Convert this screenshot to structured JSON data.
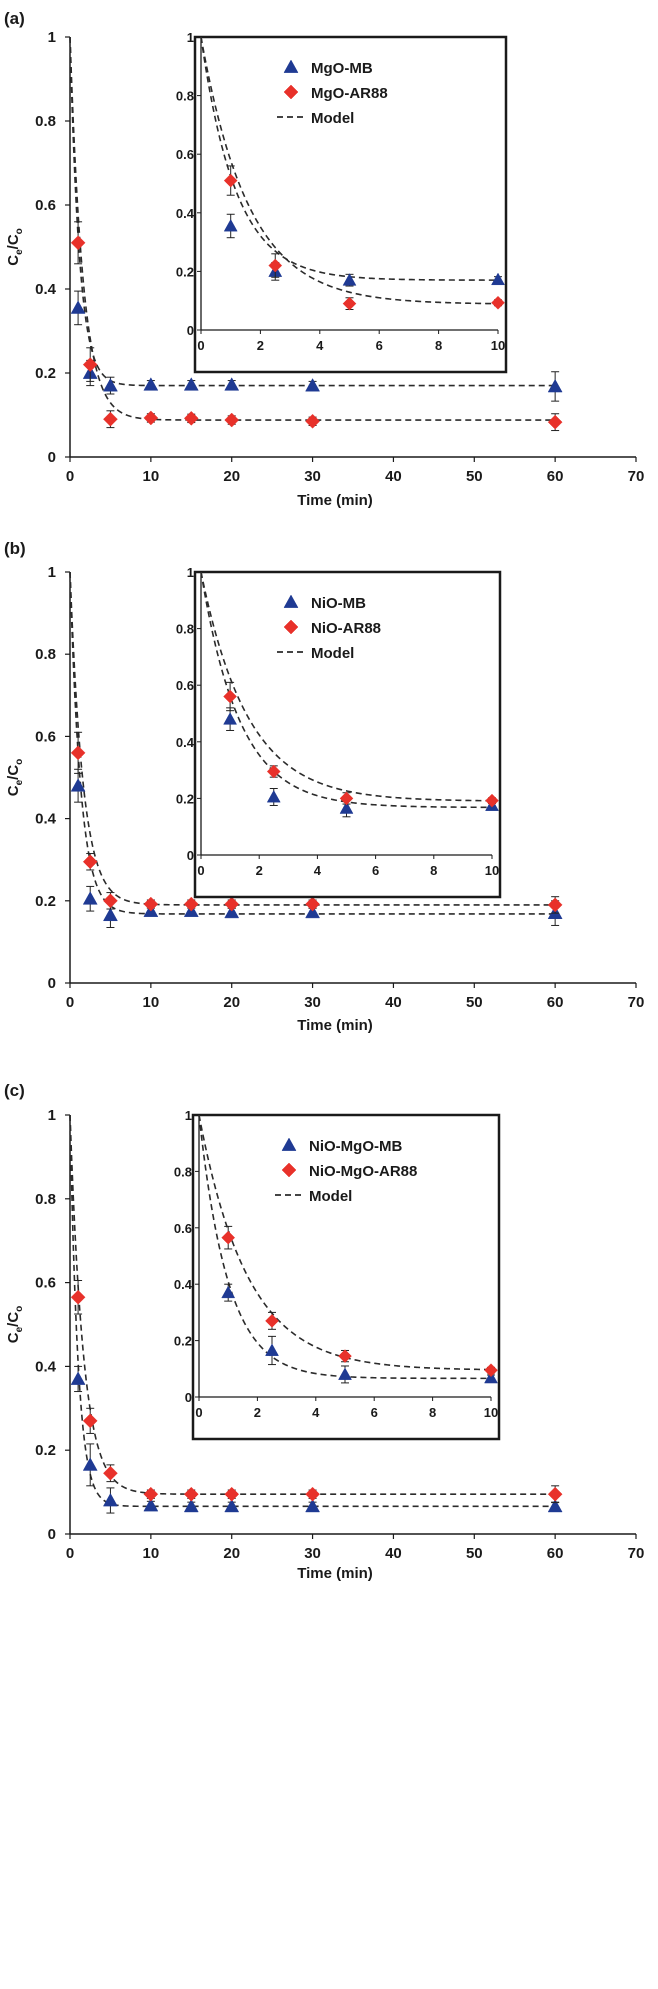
{
  "colors": {
    "mb": "#1f3a93",
    "ar": "#e8312a",
    "model": "#2b2b2b",
    "axis": "#1a1a1a"
  },
  "chart_data": [
    {
      "type": "scatter",
      "panel_label": "(a)",
      "xlabel": "Time (min)",
      "ylabel_main": "C",
      "ylabel_sub1": "e",
      "ylabel_slash": "/C",
      "ylabel_sub2": "o",
      "xlim": [
        0,
        70
      ],
      "ylim": [
        0,
        1
      ],
      "xticks": [
        "0",
        "10",
        "20",
        "30",
        "40",
        "50",
        "60",
        "70"
      ],
      "yticks": [
        "0",
        "0.2",
        "0.4",
        "0.6",
        "0.8",
        "1"
      ],
      "inset": {
        "xlim": [
          0,
          10
        ],
        "ylim": [
          0,
          1
        ],
        "xticks": [
          "0",
          "2",
          "4",
          "6",
          "8",
          "10"
        ],
        "yticks": [
          "0",
          "0.2",
          "0.4",
          "0.6",
          "0.8",
          "1"
        ]
      },
      "legend": {
        "mb": "MgO-MB",
        "ar": "MgO-AR88",
        "model": "Model"
      },
      "series": [
        {
          "key": "mb",
          "name": "MgO-MB",
          "marker": "triangle",
          "x": [
            1,
            2.5,
            5,
            10,
            15,
            20,
            30,
            60
          ],
          "y": [
            0.355,
            0.2,
            0.17,
            0.172,
            0.172,
            0.172,
            0.17,
            0.168
          ],
          "err": [
            0.04,
            0.03,
            0.02,
            0.01,
            0.01,
            0.01,
            0.01,
            0.035
          ],
          "model": {
            "plateau": 0.17,
            "rate": 0.85
          }
        },
        {
          "key": "ar",
          "name": "MgO-AR88",
          "marker": "diamond",
          "x": [
            1,
            2.5,
            5,
            10,
            15,
            20,
            30,
            60
          ],
          "y": [
            0.51,
            0.22,
            0.09,
            0.093,
            0.092,
            0.088,
            0.085,
            0.083
          ],
          "err": [
            0.05,
            0.04,
            0.02,
            0.01,
            0.01,
            0.01,
            0.01,
            0.02
          ],
          "model": {
            "plateau": 0.088,
            "rate": 0.62
          }
        }
      ]
    },
    {
      "type": "scatter",
      "panel_label": "(b)",
      "xlabel": "Time (min)",
      "ylabel_main": "C",
      "ylabel_sub1": "e",
      "ylabel_slash": "/C",
      "ylabel_sub2": "o",
      "xlim": [
        0,
        70
      ],
      "ylim": [
        0,
        1
      ],
      "xticks": [
        "0",
        "10",
        "20",
        "30",
        "40",
        "50",
        "60",
        "70"
      ],
      "yticks": [
        "0",
        "0.2",
        "0.4",
        "0.6",
        "0.8",
        "1"
      ],
      "inset": {
        "xlim": [
          0,
          10
        ],
        "ylim": [
          0,
          1
        ],
        "xticks": [
          "0",
          "2",
          "4",
          "6",
          "8",
          "10"
        ],
        "yticks": [
          "0",
          "0.2",
          "0.4",
          "0.6",
          "0.8",
          "1"
        ]
      },
      "legend": {
        "mb": "NiO-MB",
        "ar": "NiO-AR88",
        "model": "Model"
      },
      "series": [
        {
          "key": "mb",
          "name": "NiO-MB",
          "marker": "triangle",
          "x": [
            1,
            2.5,
            5,
            10,
            15,
            20,
            30,
            60
          ],
          "y": [
            0.48,
            0.205,
            0.165,
            0.175,
            0.175,
            0.172,
            0.172,
            0.17
          ],
          "err": [
            0.04,
            0.03,
            0.03,
            0.01,
            0.01,
            0.01,
            0.01,
            0.03
          ],
          "model": {
            "plateau": 0.168,
            "rate": 0.75
          }
        },
        {
          "key": "ar",
          "name": "NiO-AR88",
          "marker": "diamond",
          "x": [
            1,
            2.5,
            5,
            10,
            15,
            20,
            30,
            60
          ],
          "y": [
            0.56,
            0.295,
            0.2,
            0.192,
            0.192,
            0.192,
            0.192,
            0.19
          ],
          "err": [
            0.05,
            0.02,
            0.02,
            0.01,
            0.01,
            0.01,
            0.01,
            0.02
          ],
          "model": {
            "plateau": 0.19,
            "rate": 0.62
          }
        }
      ]
    },
    {
      "type": "scatter",
      "panel_label": "(c)",
      "xlabel": "Time (min)",
      "ylabel_main": "C",
      "ylabel_sub1": "e",
      "ylabel_slash": "/C",
      "ylabel_sub2": "o",
      "xlim": [
        0,
        70
      ],
      "ylim": [
        0,
        1
      ],
      "xticks": [
        "0",
        "10",
        "20",
        "30",
        "40",
        "50",
        "60",
        "70"
      ],
      "yticks": [
        "0",
        "0.2",
        "0.4",
        "0.6",
        "0.8",
        "1"
      ],
      "inset": {
        "xlim": [
          0,
          10
        ],
        "ylim": [
          0,
          1
        ],
        "xticks": [
          "0",
          "2",
          "4",
          "6",
          "8",
          "10"
        ],
        "yticks": [
          "0",
          "0.2",
          "0.4",
          "0.6",
          "0.8",
          "1"
        ]
      },
      "legend": {
        "mb": "NiO-MgO-MB",
        "ar": "NiO-MgO-AR88",
        "model": "Model"
      },
      "series": [
        {
          "key": "mb",
          "name": "NiO-MgO-MB",
          "marker": "triangle",
          "x": [
            1,
            2.5,
            5,
            10,
            15,
            20,
            30,
            60
          ],
          "y": [
            0.37,
            0.165,
            0.08,
            0.068,
            0.066,
            0.066,
            0.066,
            0.066
          ],
          "err": [
            0.03,
            0.05,
            0.03,
            0.01,
            0.01,
            0.01,
            0.01,
            0.01
          ],
          "model": {
            "plateau": 0.066,
            "rate": 1.0
          }
        },
        {
          "key": "ar",
          "name": "NiO-MgO-AR88",
          "marker": "diamond",
          "x": [
            1,
            2.5,
            5,
            10,
            15,
            20,
            30,
            60
          ],
          "y": [
            0.565,
            0.27,
            0.145,
            0.095,
            0.095,
            0.095,
            0.095,
            0.095
          ],
          "err": [
            0.04,
            0.03,
            0.02,
            0.01,
            0.01,
            0.01,
            0.01,
            0.02
          ],
          "model": {
            "plateau": 0.095,
            "rate": 0.6
          }
        }
      ]
    }
  ]
}
